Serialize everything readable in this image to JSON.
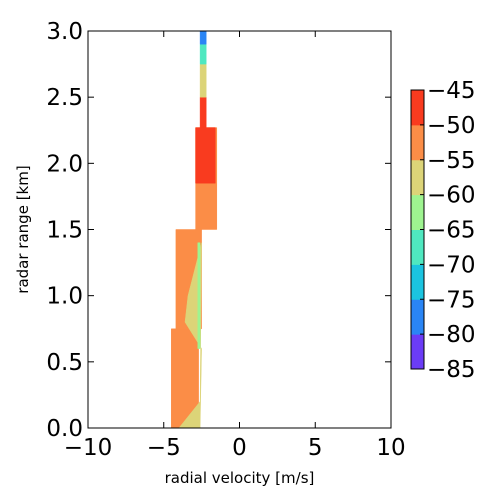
{
  "chart_data": {
    "type": "contourf",
    "title": "",
    "xlabel": "radial velocity [m/s]",
    "ylabel": "radar range [km]",
    "xlim": [
      -10,
      10
    ],
    "ylim": [
      0,
      3
    ],
    "x_ticks": [
      -10,
      -5,
      0,
      5,
      10
    ],
    "x_tick_labels": [
      "−10",
      "−5",
      "0",
      "5",
      "10"
    ],
    "y_ticks": [
      0.0,
      0.5,
      1.0,
      1.5,
      2.0,
      2.5,
      3.0
    ],
    "y_tick_labels": [
      "0.0",
      "0.5",
      "1.0",
      "1.5",
      "2.0",
      "2.5",
      "3.0"
    ],
    "grid": false,
    "colorbar": {
      "levels": [
        -85,
        -80,
        -75,
        -70,
        -65,
        -60,
        -55,
        -50,
        -45
      ],
      "tick_labels": [
        "−85",
        "−80",
        "−75",
        "−70",
        "−65",
        "−60",
        "−55",
        "−50",
        "−45"
      ],
      "colors": [
        "#6b3cf6",
        "#2a85f5",
        "#1bc4e0",
        "#4fe8c0",
        "#9ef490",
        "#dcd478",
        "#fb8d47",
        "#f93b1f"
      ],
      "colormap": "rainbow"
    },
    "regions": [
      {
        "level_band": [
          -55,
          -50
        ],
        "color": "#fb8d47",
        "polygon": [
          [
            -4.5,
            0
          ],
          [
            -2.7,
            0
          ],
          [
            -2.7,
            0.75
          ],
          [
            -4.5,
            0.75
          ]
        ]
      },
      {
        "level_band": [
          -55,
          -50
        ],
        "color": "#fb8d47",
        "polygon": [
          [
            -4.2,
            0.75
          ],
          [
            -2.5,
            0.75
          ],
          [
            -2.5,
            1.5
          ],
          [
            -4.2,
            1.5
          ]
        ]
      },
      {
        "level_band": [
          -60,
          -55
        ],
        "color": "#dcd478",
        "polygon": [
          [
            -4.0,
            0
          ],
          [
            -2.6,
            0
          ],
          [
            -2.5,
            0.6
          ],
          [
            -3.6,
            0.8
          ],
          [
            -3.4,
            1.0
          ],
          [
            -2.5,
            1.4
          ],
          [
            -2.6,
            0.2
          ]
        ]
      },
      {
        "level_band": [
          -65,
          -60
        ],
        "color": "#9ef490",
        "polygon": [
          [
            -2.75,
            0.6
          ],
          [
            -2.6,
            0.6
          ],
          [
            -2.6,
            1.4
          ],
          [
            -2.75,
            1.4
          ]
        ]
      },
      {
        "level_band": [
          -55,
          -50
        ],
        "color": "#fb8d47",
        "polygon": [
          [
            -2.9,
            1.5
          ],
          [
            -1.5,
            1.5
          ],
          [
            -1.5,
            2.27
          ],
          [
            -2.9,
            2.27
          ]
        ]
      },
      {
        "level_band": [
          -50,
          -45
        ],
        "color": "#f93b1f",
        "polygon": [
          [
            -2.9,
            1.85
          ],
          [
            -1.6,
            1.85
          ],
          [
            -1.6,
            2.27
          ],
          [
            -2.9,
            2.27
          ]
        ]
      },
      {
        "level_band": [
          -50,
          -45
        ],
        "color": "#f93b1f",
        "polygon": [
          [
            -2.6,
            2.27
          ],
          [
            -2.2,
            2.27
          ],
          [
            -2.2,
            2.5
          ],
          [
            -2.6,
            2.5
          ]
        ]
      },
      {
        "level_band": [
          -60,
          -55
        ],
        "color": "#dcd478",
        "polygon": [
          [
            -2.6,
            2.5
          ],
          [
            -2.2,
            2.5
          ],
          [
            -2.2,
            2.75
          ],
          [
            -2.6,
            2.75
          ]
        ]
      },
      {
        "level_band": [
          -70,
          -65
        ],
        "color": "#4fe8c0",
        "polygon": [
          [
            -2.6,
            2.75
          ],
          [
            -2.2,
            2.75
          ],
          [
            -2.2,
            2.9
          ],
          [
            -2.6,
            2.9
          ]
        ]
      },
      {
        "level_band": [
          -80,
          -75
        ],
        "color": "#2a85f5",
        "polygon": [
          [
            -2.6,
            2.9
          ],
          [
            -2.2,
            2.9
          ],
          [
            -2.2,
            3.0
          ],
          [
            -2.6,
            3.0
          ]
        ]
      }
    ]
  }
}
